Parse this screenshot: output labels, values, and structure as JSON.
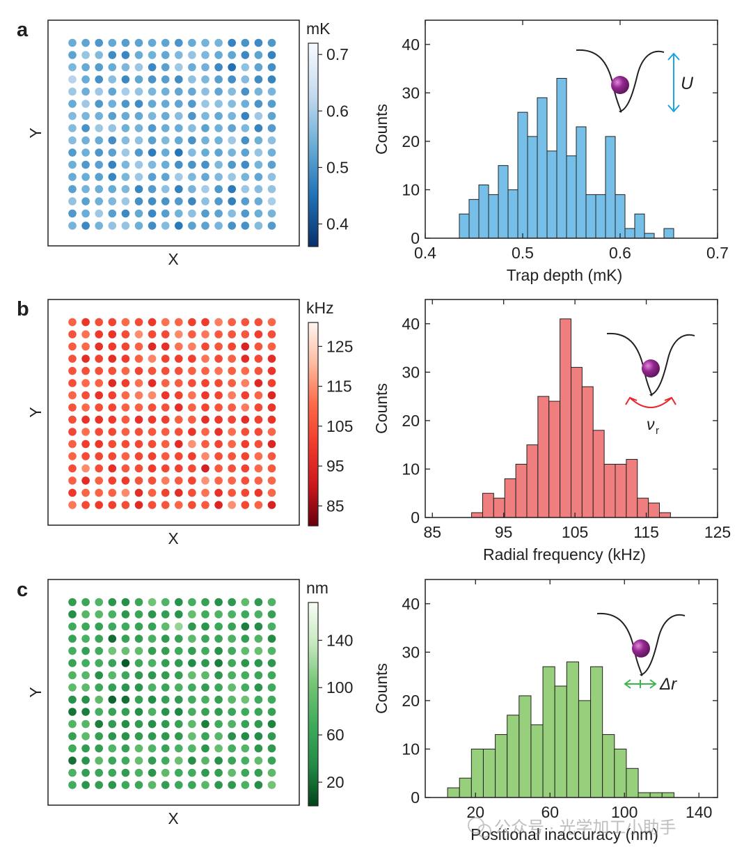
{
  "chart_data": [
    {
      "panel": "a",
      "type": "heatmap",
      "grid": {
        "rows": 16,
        "cols": 16
      },
      "xlabel": "X",
      "ylabel": "Y",
      "colorbar": {
        "unit": "mK",
        "ticks": [
          "0.7",
          "0.6",
          "0.5",
          "0.4"
        ],
        "tick_values": [
          0.7,
          0.6,
          0.5,
          0.4
        ],
        "range": [
          0.36,
          0.72
        ],
        "colors": [
          "#08306b",
          "#2171b5",
          "#6baed6",
          "#c6dbef",
          "#f7fbff"
        ]
      },
      "values_range": [
        0.44,
        0.63
      ]
    },
    {
      "panel": "a",
      "type": "bar",
      "xlabel": "Trap depth (mK)",
      "ylabel": "Counts",
      "xlim": [
        0.4,
        0.7
      ],
      "ylim": [
        0,
        45
      ],
      "xticks": [
        "0.4",
        "0.5",
        "0.6",
        "0.7"
      ],
      "xtick_values": [
        0.4,
        0.5,
        0.6,
        0.7
      ],
      "yticks": [
        "0",
        "10",
        "20",
        "30",
        "40"
      ],
      "ytick_values": [
        0,
        10,
        20,
        30,
        40
      ],
      "bin_start": 0.435,
      "bin_width": 0.01,
      "values": [
        5,
        8,
        11,
        9,
        15,
        10,
        26,
        21,
        29,
        18,
        33,
        17,
        23,
        9,
        9,
        21,
        9,
        2,
        5,
        1,
        0,
        2
      ],
      "color": "#75bfe9",
      "inset": {
        "label": "U",
        "arrow_color": "#1aa3de",
        "ball_color": "#93268f"
      }
    },
    {
      "panel": "b",
      "type": "heatmap",
      "grid": {
        "rows": 16,
        "cols": 16
      },
      "xlabel": "X",
      "ylabel": "Y",
      "colorbar": {
        "unit": "kHz",
        "ticks": [
          "125",
          "115",
          "105",
          "95",
          "85"
        ],
        "tick_values": [
          125,
          115,
          105,
          95,
          85
        ],
        "range": [
          80,
          131
        ],
        "colors": [
          "#67000d",
          "#cb181d",
          "#ef3b2c",
          "#fb6a4a",
          "#fcbba1",
          "#fff5f0"
        ]
      },
      "values_range": [
        90,
        120
      ]
    },
    {
      "panel": "b",
      "type": "bar",
      "xlabel": "Radial frequency (kHz)",
      "ylabel": "Counts",
      "xlim": [
        84,
        125
      ],
      "ylim": [
        0,
        45
      ],
      "xticks": [
        "85",
        "95",
        "105",
        "115",
        "125"
      ],
      "xtick_values": [
        85,
        95,
        105,
        115,
        125
      ],
      "yticks": [
        "0",
        "10",
        "20",
        "30",
        "40"
      ],
      "ytick_values": [
        0,
        10,
        20,
        30,
        40
      ],
      "bin_start": 90.5,
      "bin_width": 1.55,
      "values": [
        1,
        5,
        4,
        8,
        11,
        15,
        25,
        24,
        41,
        31,
        27,
        18,
        11,
        11,
        12,
        4,
        3,
        1
      ],
      "color": "#ef7f7f",
      "inset": {
        "label": "ν",
        "label_sub": "r",
        "arrow_color": "#e8262c",
        "ball_color": "#93268f"
      }
    },
    {
      "panel": "c",
      "type": "heatmap",
      "grid": {
        "rows": 16,
        "cols": 16
      },
      "xlabel": "X",
      "ylabel": "Y",
      "colorbar": {
        "unit": "nm",
        "ticks": [
          "140",
          "100",
          "60",
          "20"
        ],
        "tick_values": [
          140,
          100,
          60,
          20
        ],
        "range": [
          0,
          172
        ],
        "colors": [
          "#00441b",
          "#238b45",
          "#41ab5d",
          "#74c476",
          "#c7e9c0",
          "#f7fcf5"
        ]
      },
      "values_range": [
        5,
        120
      ]
    },
    {
      "panel": "c",
      "type": "bar",
      "xlabel": "Positional inaccuracy (nm)",
      "ylabel": "Counts",
      "xlim": [
        -7,
        150
      ],
      "ylim": [
        0,
        45
      ],
      "xticks": [
        "20",
        "60",
        "100",
        "140"
      ],
      "xtick_values": [
        20,
        60,
        100,
        140
      ],
      "yticks": [
        "0",
        "10",
        "20",
        "30",
        "40"
      ],
      "ytick_values": [
        0,
        10,
        20,
        30,
        40
      ],
      "bin_start": 5,
      "bin_width": 6.4,
      "values": [
        2,
        4,
        10,
        10,
        13,
        17,
        21,
        15,
        27,
        23,
        28,
        20,
        27,
        13,
        10,
        6,
        1,
        1,
        1
      ],
      "color": "#98cf7c",
      "inset": {
        "label": "Δr",
        "arrow_color": "#3ab54a",
        "ball_color": "#93268f"
      }
    }
  ],
  "panel_labels": [
    "a",
    "b",
    "c"
  ],
  "watermark": "公众号 · 光学加工小助手"
}
